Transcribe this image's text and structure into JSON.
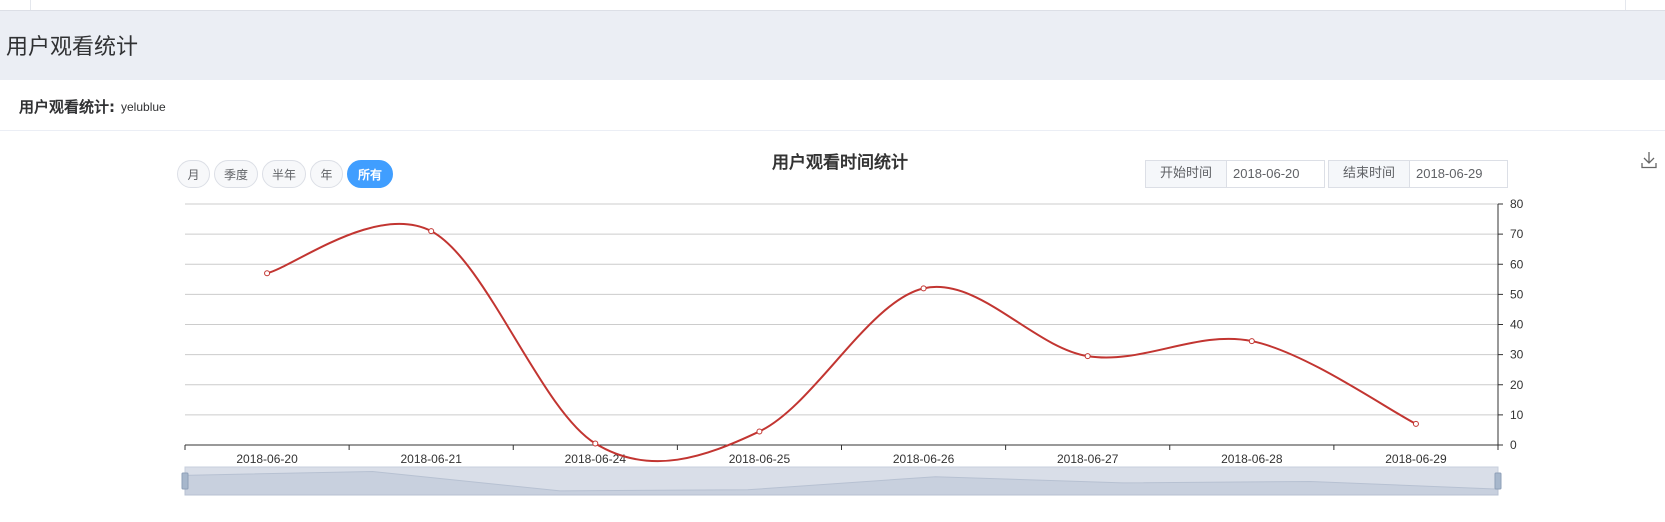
{
  "page": {
    "title": "用户观看统计"
  },
  "card": {
    "label": "用户观看统计:",
    "user": "yelublue"
  },
  "range_buttons": [
    "月",
    "季度",
    "半年",
    "年",
    "所有"
  ],
  "active_range": "所有",
  "date_filter": {
    "start_label": "开始时间",
    "start_value": "2018-06-20",
    "end_label": "结束时间",
    "end_value": "2018-06-29"
  },
  "toolbar": {
    "icon": "download-icon"
  },
  "colors": {
    "line": "#c23531",
    "accent": "#409eff",
    "grid": "#cccccc",
    "slider": "#d9dee8"
  },
  "chart_data": {
    "type": "line",
    "title": "用户观看时间统计",
    "categories": [
      "2018-06-20",
      "2018-06-21",
      "2018-06-24",
      "2018-06-25",
      "2018-06-26",
      "2018-06-27",
      "2018-06-28",
      "2018-06-29"
    ],
    "series": [
      {
        "values": [
          57,
          71,
          0.5,
          4.5,
          52,
          29.5,
          34.5,
          7
        ]
      }
    ],
    "ylim": [
      0,
      80
    ],
    "yticks": [
      0,
      10,
      20,
      30,
      40,
      50,
      60,
      70,
      80
    ],
    "y_axis_position": "right",
    "smooth": true,
    "grid": true,
    "data_zoom_slider": true
  }
}
